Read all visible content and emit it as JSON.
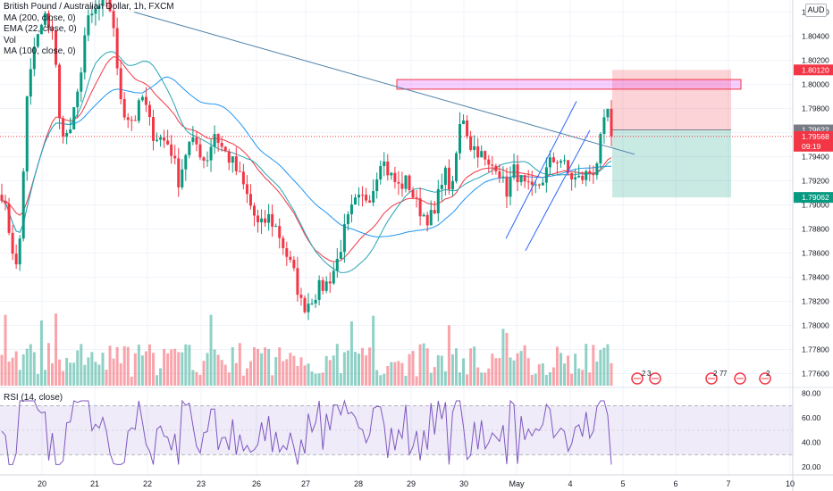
{
  "chart_data": {
    "type": "candlestick",
    "symbol_title": "British Pound / Australian Dollar, 1h, FXCM",
    "indicators": [
      "MA (200, close, 0)",
      "EMA (22, close, 0)",
      "Vol",
      "MA (100, close, 0)"
    ],
    "currency": "AUD",
    "y_range": [
      1.775,
      1.807
    ],
    "y_ticks": [
      "1.80600",
      "1.80400",
      "1.80200",
      "1.80000",
      "1.79800",
      "1.79600",
      "1.79400",
      "1.79200",
      "1.79000",
      "1.78800",
      "1.78600",
      "1.78400",
      "1.78200",
      "1.78000",
      "1.77800",
      "1.77600"
    ],
    "price_labels": [
      {
        "text": "1.80120",
        "value": 1.8012,
        "color": "#f23645"
      },
      {
        "text": "1.79622",
        "value": 1.79622,
        "color": "#787b86"
      },
      {
        "text": "1.79568",
        "value": 1.79568,
        "color": "#f23645"
      },
      {
        "text": "09:19",
        "value": 1.79505,
        "color": "#f23645"
      },
      {
        "text": "1.79062",
        "value": 1.79062,
        "color": "#089981"
      }
    ],
    "x_labels": [
      "20",
      "21",
      "22",
      "23",
      "26",
      "27",
      "28",
      "29",
      "30",
      "May",
      "4",
      "5",
      "6",
      "7",
      "10"
    ],
    "rsi": {
      "label": "RSI (14, close)",
      "ticks": [
        "80.00",
        "60.00",
        "40.00",
        "20.00"
      ],
      "band": [
        30,
        70
      ]
    },
    "event_labels": [
      "2",
      "3",
      "2",
      "7",
      "7",
      "2"
    ],
    "seed": 7,
    "control_points": [
      [
        0,
        1.7918
      ],
      [
        10,
        1.788
      ],
      [
        20,
        1.784
      ],
      [
        30,
        1.7985
      ],
      [
        38,
        1.803
      ],
      [
        50,
        1.8055
      ],
      [
        60,
        1.8045
      ],
      [
        66,
        1.797
      ],
      [
        76,
        1.7955
      ],
      [
        86,
        1.7985
      ],
      [
        96,
        1.8048
      ],
      [
        108,
        1.8062
      ],
      [
        117,
        1.8068
      ],
      [
        126,
        1.806
      ],
      [
        132,
        1.8
      ],
      [
        140,
        1.7975
      ],
      [
        150,
        1.797
      ],
      [
        160,
        1.799
      ],
      [
        170,
        1.796
      ],
      [
        180,
        1.7955
      ],
      [
        190,
        1.795
      ],
      [
        200,
        1.792
      ],
      [
        210,
        1.795
      ],
      [
        220,
        1.795
      ],
      [
        230,
        1.7935
      ],
      [
        240,
        1.796
      ],
      [
        250,
        1.7945
      ],
      [
        260,
        1.7935
      ],
      [
        270,
        1.792
      ],
      [
        280,
        1.79
      ],
      [
        290,
        1.788
      ],
      [
        300,
        1.789
      ],
      [
        310,
        1.788
      ],
      [
        320,
        1.786
      ],
      [
        330,
        1.784
      ],
      [
        338,
        1.7815
      ],
      [
        346,
        1.782
      ],
      [
        356,
        1.783
      ],
      [
        366,
        1.7835
      ],
      [
        376,
        1.785
      ],
      [
        386,
        1.788
      ],
      [
        396,
        1.79
      ],
      [
        406,
        1.7905
      ],
      [
        416,
        1.791
      ],
      [
        426,
        1.794
      ],
      [
        436,
        1.7925
      ],
      [
        446,
        1.7915
      ],
      [
        456,
        1.792
      ],
      [
        466,
        1.79
      ],
      [
        476,
        1.789
      ],
      [
        486,
        1.789
      ],
      [
        496,
        1.793
      ],
      [
        506,
        1.791
      ],
      [
        513,
        1.796
      ],
      [
        518,
        1.7975
      ],
      [
        526,
        1.795
      ],
      [
        536,
        1.7945
      ],
      [
        546,
        1.793
      ],
      [
        556,
        1.7935
      ],
      [
        566,
        1.791
      ],
      [
        576,
        1.793
      ],
      [
        586,
        1.7915
      ],
      [
        596,
        1.791
      ],
      [
        606,
        1.792
      ],
      [
        616,
        1.7935
      ],
      [
        626,
        1.794
      ],
      [
        636,
        1.7925
      ],
      [
        646,
        1.792
      ],
      [
        656,
        1.7925
      ],
      [
        666,
        1.793
      ],
      [
        674,
        1.796
      ],
      [
        680,
        1.7978
      ],
      [
        684,
        1.796
      ]
    ]
  }
}
